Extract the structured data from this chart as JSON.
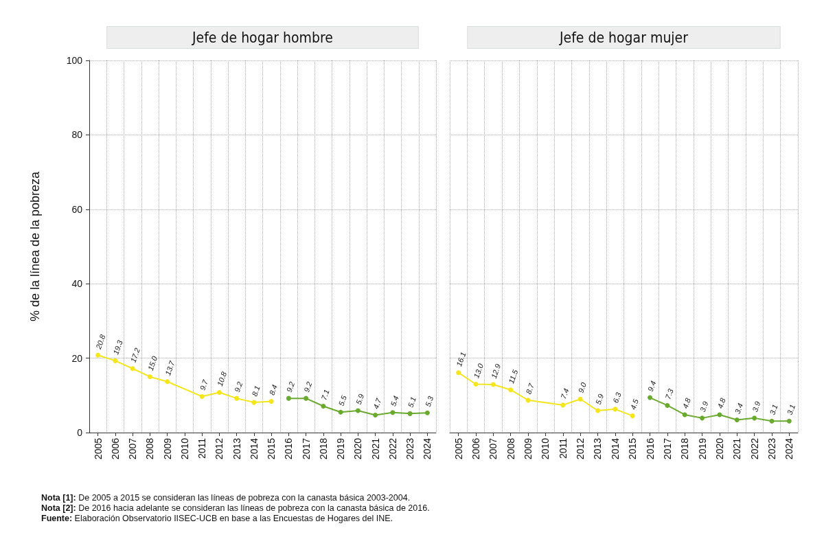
{
  "chart_data": [
    {
      "type": "line",
      "title": "Jefe de hogar hombre",
      "ylabel": "% de la línea de la pobreza",
      "categories": [
        "2005",
        "2006",
        "2007",
        "2008",
        "2009",
        "2010",
        "2011",
        "2012",
        "2013",
        "2014",
        "2015",
        "2016",
        "2017",
        "2018",
        "2019",
        "2020",
        "2021",
        "2022",
        "2023",
        "2024"
      ],
      "series": [
        {
          "color": "#f5e51b",
          "values": [
            20.8,
            19.3,
            17.2,
            15.0,
            13.7,
            null,
            9.7,
            10.8,
            9.2,
            8.1,
            8.4,
            null,
            null,
            null,
            null,
            null,
            null,
            null,
            null,
            null
          ],
          "value_labels": [
            "20.8",
            "19.3",
            "17.2",
            "15.0",
            "13.7",
            null,
            "9.7",
            "10.8",
            "9.2",
            "8.1",
            "8.4",
            null,
            null,
            null,
            null,
            null,
            null,
            null,
            null,
            null
          ]
        },
        {
          "color": "#6aaa2f",
          "values": [
            null,
            null,
            null,
            null,
            null,
            null,
            null,
            null,
            null,
            null,
            null,
            9.2,
            9.2,
            7.1,
            5.5,
            5.9,
            4.7,
            5.4,
            5.1,
            5.3
          ],
          "value_labels": [
            null,
            null,
            null,
            null,
            null,
            null,
            null,
            null,
            null,
            null,
            null,
            "9.2",
            "9.2",
            "7.1",
            "5.5",
            "5.9",
            "4.7",
            "5.4",
            "5.1",
            "5.3"
          ]
        }
      ],
      "ylim": [
        0,
        100
      ],
      "yticks": [
        0,
        20,
        40,
        60,
        80,
        100
      ],
      "grid": true,
      "marker": "circle",
      "annotations": [
        "Nota [1]: De 2005 a 2015 se consideran las líneas de pobreza con la canasta básica 2003-2004.",
        "Nota [2]: De 2016 hacia adelante se consideran las líneas de pobreza con la canasta básica de 2016.",
        "Fuente: Elaboración Observatorio IISEC-UCB en base a las Encuestas de Hogares del INE."
      ]
    },
    {
      "type": "line",
      "title": "Jefe de hogar mujer",
      "categories": [
        "2005",
        "2006",
        "2007",
        "2008",
        "2009",
        "2010",
        "2011",
        "2012",
        "2013",
        "2014",
        "2015",
        "2016",
        "2017",
        "2018",
        "2019",
        "2020",
        "2021",
        "2022",
        "2023",
        "2024"
      ],
      "series": [
        {
          "color": "#f5e51b",
          "values": [
            16.1,
            13.0,
            12.9,
            11.5,
            8.7,
            null,
            7.4,
            9.0,
            5.9,
            6.3,
            4.5,
            null,
            null,
            null,
            null,
            null,
            null,
            null,
            null,
            null
          ],
          "value_labels": [
            "16.1",
            "13.0",
            "12.9",
            "11.5",
            "8.7",
            null,
            "7.4",
            "9.0",
            "5.9",
            "6.3",
            "4.5",
            null,
            null,
            null,
            null,
            null,
            null,
            null,
            null,
            null
          ]
        },
        {
          "color": "#6aaa2f",
          "values": [
            null,
            null,
            null,
            null,
            null,
            null,
            null,
            null,
            null,
            null,
            null,
            9.4,
            7.3,
            4.8,
            3.9,
            4.8,
            3.4,
            3.9,
            3.1,
            3.1
          ],
          "value_labels": [
            null,
            null,
            null,
            null,
            null,
            null,
            null,
            null,
            null,
            null,
            null,
            "9.4",
            "7.3",
            "4.8",
            "3.9",
            "4.8",
            "3.4",
            "3.9",
            "3.1",
            "3.1"
          ]
        }
      ],
      "ylim": [
        0,
        100
      ],
      "yticks": [
        0,
        20,
        40,
        60,
        80,
        100
      ],
      "grid": true,
      "marker": "circle",
      "tick_labels": "x"
    }
  ]
}
